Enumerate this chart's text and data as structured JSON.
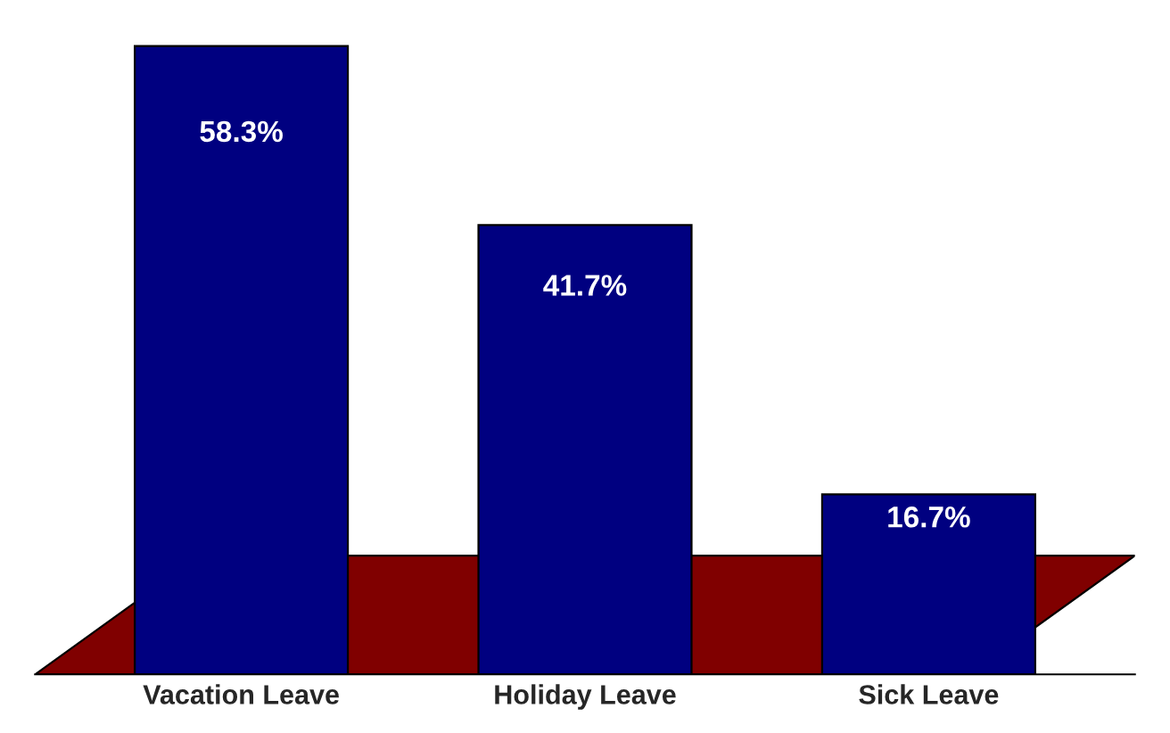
{
  "chart_data": {
    "type": "bar",
    "categories": [
      "Vacation Leave",
      "Holiday Leave",
      "Sick Leave"
    ],
    "values": [
      58.3,
      41.7,
      16.7
    ],
    "value_labels": [
      "58.3%",
      "41.7%",
      "16.7%"
    ],
    "color": "#000080",
    "grid": false,
    "legend": false
  }
}
